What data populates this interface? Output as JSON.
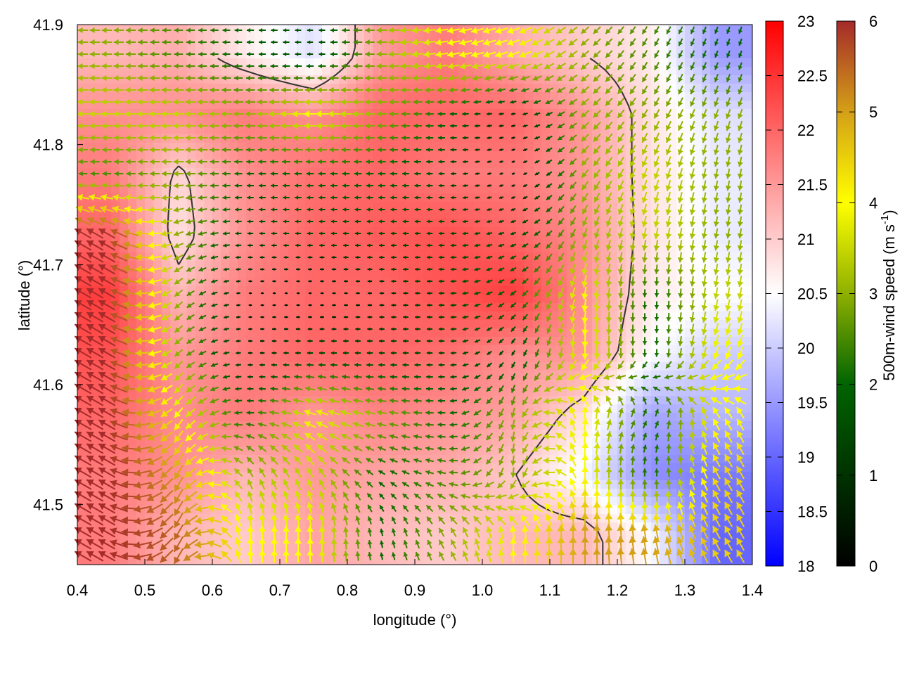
{
  "chart_data": {
    "type": "heatmap",
    "title": "",
    "xlabel": "longitude (°)",
    "ylabel": "latitude (°)",
    "xlim": [
      0.4,
      1.4
    ],
    "ylim": [
      41.45,
      41.9
    ],
    "xticks": [
      "0.4",
      "0.5",
      "0.6",
      "0.7",
      "0.8",
      "0.9",
      "1.0",
      "1.1",
      "1.2",
      "1.3",
      "1.4"
    ],
    "yticks": [
      "41.5",
      "41.6",
      "41.7",
      "41.8",
      "41.9"
    ],
    "grid_lon": [
      0.45,
      0.55,
      0.65,
      0.75,
      0.85,
      0.95,
      1.05,
      1.15,
      1.25,
      1.35
    ],
    "grid_lat": [
      41.875,
      41.825,
      41.775,
      41.725,
      41.675,
      41.625,
      41.575,
      41.525,
      41.475
    ],
    "temperature": [
      [
        21.2,
        21.3,
        20.7,
        20.2,
        21.5,
        21.8,
        21.3,
        21.0,
        20.7,
        19.5
      ],
      [
        21.6,
        21.6,
        21.8,
        21.6,
        22.0,
        22.0,
        22.0,
        21.5,
        20.8,
        20.2
      ],
      [
        21.8,
        20.9,
        21.6,
        21.9,
        22.0,
        21.8,
        21.8,
        21.5,
        20.8,
        20.3
      ],
      [
        22.0,
        20.8,
        21.6,
        22.0,
        22.1,
        22.2,
        22.0,
        21.6,
        20.8,
        20.3
      ],
      [
        22.4,
        21.2,
        21.8,
        22.0,
        22.0,
        22.2,
        22.4,
        21.6,
        20.7,
        20.5
      ],
      [
        22.2,
        21.5,
        21.8,
        22.0,
        22.0,
        21.9,
        21.6,
        21.5,
        20.5,
        20.0
      ],
      [
        22.0,
        21.6,
        21.8,
        21.5,
        21.7,
        21.6,
        21.4,
        20.8,
        19.6,
        19.8
      ],
      [
        21.8,
        21.6,
        21.2,
        21.5,
        21.4,
        21.3,
        21.0,
        20.4,
        19.4,
        19.2
      ],
      [
        21.8,
        21.2,
        21.0,
        21.4,
        21.2,
        21.0,
        21.2,
        21.2,
        20.5,
        19.0
      ]
    ],
    "wind_speed": [
      [
        3,
        2.5,
        2,
        1.5,
        3,
        4,
        4,
        3,
        2.5,
        2
      ],
      [
        3.5,
        3.5,
        3,
        4,
        3,
        2,
        1,
        3,
        3,
        3
      ],
      [
        2.5,
        3,
        2,
        2,
        2,
        1.5,
        0.5,
        3,
        3.5,
        3
      ],
      [
        6,
        3,
        1.5,
        1.5,
        1.5,
        1.5,
        1.5,
        3,
        3.5,
        3
      ],
      [
        6,
        3,
        0.5,
        0.5,
        1,
        1.5,
        2,
        4,
        2,
        3.5
      ],
      [
        6,
        3,
        1,
        1.5,
        1.5,
        1.5,
        1.5,
        4,
        2,
        4
      ],
      [
        6,
        4,
        2,
        4,
        3,
        2,
        3,
        4,
        2,
        4
      ],
      [
        6,
        5,
        3,
        3.5,
        2,
        2.5,
        3,
        4,
        2,
        4.5
      ],
      [
        6,
        5.5,
        4,
        4,
        2,
        3,
        4,
        5,
        5,
        4.5
      ]
    ],
    "wind_direction_deg": [
      [
        180,
        180,
        180,
        180,
        180,
        190,
        200,
        220,
        240,
        250
      ],
      [
        180,
        180,
        180,
        180,
        180,
        180,
        190,
        220,
        240,
        250
      ],
      [
        180,
        180,
        180,
        180,
        180,
        180,
        200,
        230,
        250,
        260
      ],
      [
        150,
        200,
        180,
        180,
        180,
        180,
        200,
        250,
        260,
        260
      ],
      [
        150,
        220,
        180,
        180,
        180,
        180,
        220,
        260,
        270,
        260
      ],
      [
        150,
        220,
        180,
        180,
        180,
        180,
        240,
        270,
        270,
        250
      ],
      [
        150,
        230,
        180,
        160,
        170,
        180,
        260,
        80,
        60,
        120
      ],
      [
        150,
        240,
        120,
        120,
        150,
        170,
        270,
        90,
        90,
        120
      ],
      [
        150,
        240,
        90,
        90,
        100,
        120,
        90,
        90,
        100,
        120
      ]
    ],
    "contour_level": 21.0,
    "colorbar_temperature": {
      "range": [
        18,
        23
      ],
      "ticks": [
        "23",
        "22.5",
        "22",
        "21.5",
        "21",
        "20.5",
        "20",
        "19.5",
        "19",
        "18.5",
        "18"
      ],
      "colors": [
        "#0000ff",
        "#ffffff",
        "#ff0000"
      ]
    },
    "colorbar_wind": {
      "range": [
        0,
        6
      ],
      "label": "500m-wind speed (m s",
      "label_sup": "-1",
      "label_end": ")",
      "ticks": [
        "6",
        "5",
        "4",
        "3",
        "2",
        "1",
        "0"
      ],
      "colors": [
        "#000000",
        "#006400",
        "#ffff00",
        "#d4a017",
        "#a52a2a"
      ]
    }
  }
}
